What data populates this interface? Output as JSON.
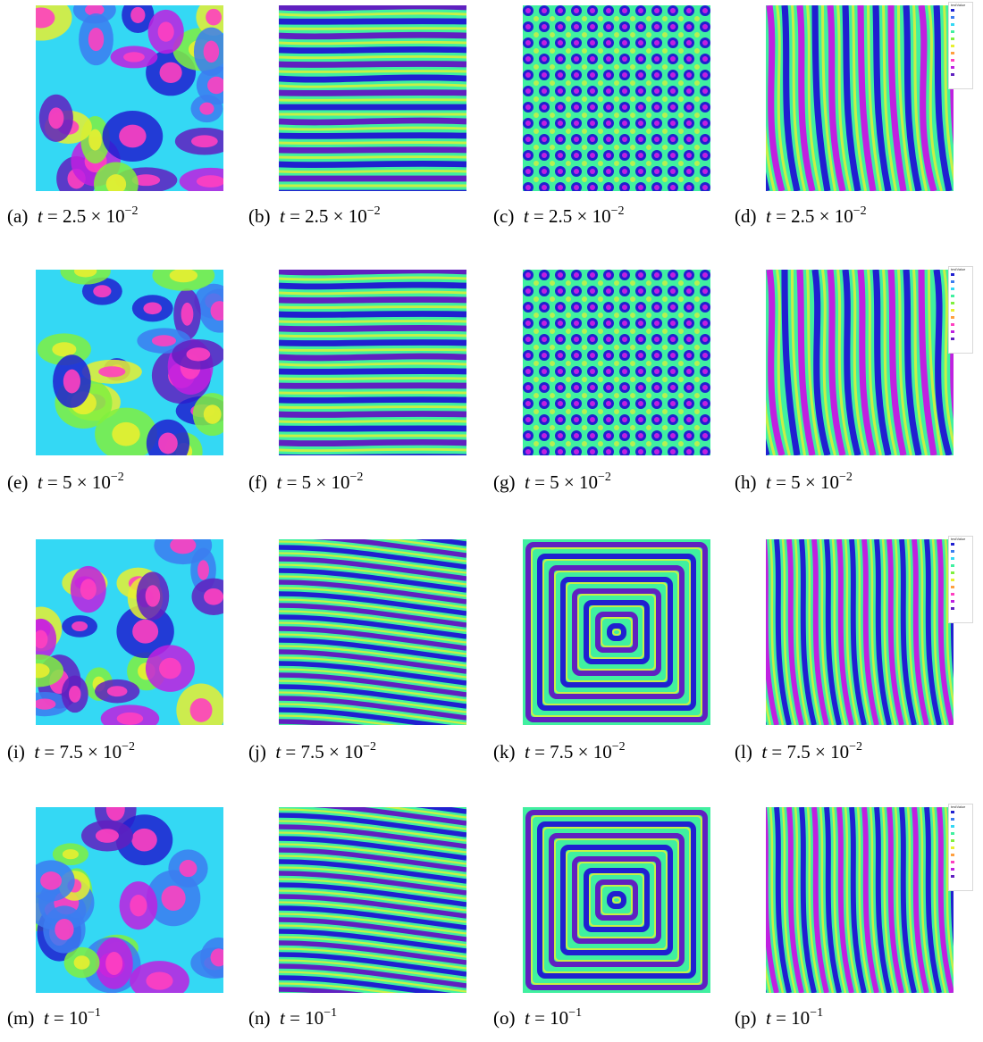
{
  "legend_title": "testValue",
  "colormap": [
    "#2020d0",
    "#3c7cf0",
    "#34d8f4",
    "#40f0a0",
    "#80f040",
    "#e8f030",
    "#ffa040",
    "#ff40c0",
    "#c020e0",
    "#6020c0"
  ],
  "panels": [
    {
      "label": "(a)",
      "time_prefix": "t = 2.5 × 10",
      "time_exp": "−2",
      "pattern": "spots"
    },
    {
      "label": "(b)",
      "time_prefix": "t = 2.5 × 10",
      "time_exp": "−2",
      "pattern": "hstripes-noisy"
    },
    {
      "label": "(c)",
      "time_prefix": "t = 2.5 × 10",
      "time_exp": "−2",
      "pattern": "dots-grid"
    },
    {
      "label": "(d)",
      "time_prefix": "t = 2.5 × 10",
      "time_exp": "−2",
      "pattern": "vstripes-noisy"
    },
    {
      "label": "(e)",
      "time_prefix": "t = 5 × 10",
      "time_exp": "−2",
      "pattern": "spots"
    },
    {
      "label": "(f)",
      "time_prefix": "t = 5 × 10",
      "time_exp": "−2",
      "pattern": "hstripes-noisy"
    },
    {
      "label": "(g)",
      "time_prefix": "t = 5 × 10",
      "time_exp": "−2",
      "pattern": "dots-grid"
    },
    {
      "label": "(h)",
      "time_prefix": "t = 5 × 10",
      "time_exp": "−2",
      "pattern": "vstripes-noisy"
    },
    {
      "label": "(i)",
      "time_prefix": "t = 7.5 × 10",
      "time_exp": "−2",
      "pattern": "spots"
    },
    {
      "label": "(j)",
      "time_prefix": "t = 7.5 × 10",
      "time_exp": "−2",
      "pattern": "diag-stripes"
    },
    {
      "label": "(k)",
      "time_prefix": "t = 7.5 × 10",
      "time_exp": "−2",
      "pattern": "rect-rings"
    },
    {
      "label": "(l)",
      "time_prefix": "t = 7.5 × 10",
      "time_exp": "−2",
      "pattern": "vstripes"
    },
    {
      "label": "(m)",
      "time_prefix": "t = 10",
      "time_exp": "−1",
      "pattern": "spots"
    },
    {
      "label": "(n)",
      "time_prefix": "t = 10",
      "time_exp": "−1",
      "pattern": "diag-stripes"
    },
    {
      "label": "(o)",
      "time_prefix": "t = 10",
      "time_exp": "−1",
      "pattern": "rect-rings"
    },
    {
      "label": "(p)",
      "time_prefix": "t = 10",
      "time_exp": "−1",
      "pattern": "vstripes"
    }
  ]
}
